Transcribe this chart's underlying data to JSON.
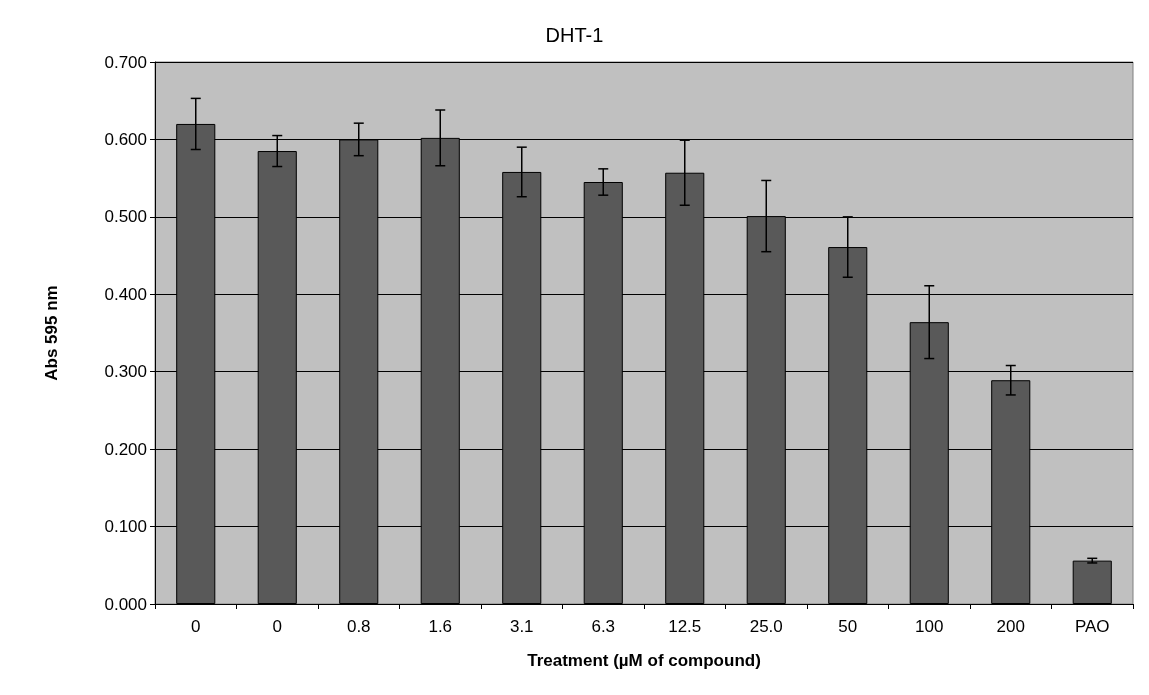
{
  "chart_data": {
    "type": "bar",
    "title": "DHT-1",
    "xlabel": "Treatment (µM of compound)",
    "ylabel": "Abs 595 nm",
    "categories": [
      "0",
      "0",
      "0.8",
      "1.6",
      "3.1",
      "6.3",
      "12.5",
      "25.0",
      "50",
      "100",
      "200",
      "PAO"
    ],
    "values": [
      0.62,
      0.585,
      0.6,
      0.602,
      0.558,
      0.545,
      0.557,
      0.501,
      0.461,
      0.364,
      0.289,
      0.056
    ],
    "errors": [
      0.033,
      0.02,
      0.021,
      0.036,
      0.032,
      0.017,
      0.042,
      0.046,
      0.039,
      0.047,
      0.019,
      0.003
    ],
    "color": "#595959",
    "ylim": [
      0,
      0.7
    ],
    "yticks": [
      {
        "value": 0,
        "label": "0.000"
      },
      {
        "value": 0.1,
        "label": "0.100"
      },
      {
        "value": 0.2,
        "label": "0.200"
      },
      {
        "value": 0.3,
        "label": "0.300"
      },
      {
        "value": 0.4,
        "label": "0.400"
      },
      {
        "value": 0.5,
        "label": "0.500"
      },
      {
        "value": 0.6,
        "label": "0.600"
      },
      {
        "value": 0.7,
        "label": "0.700"
      }
    ],
    "grid": "y"
  }
}
